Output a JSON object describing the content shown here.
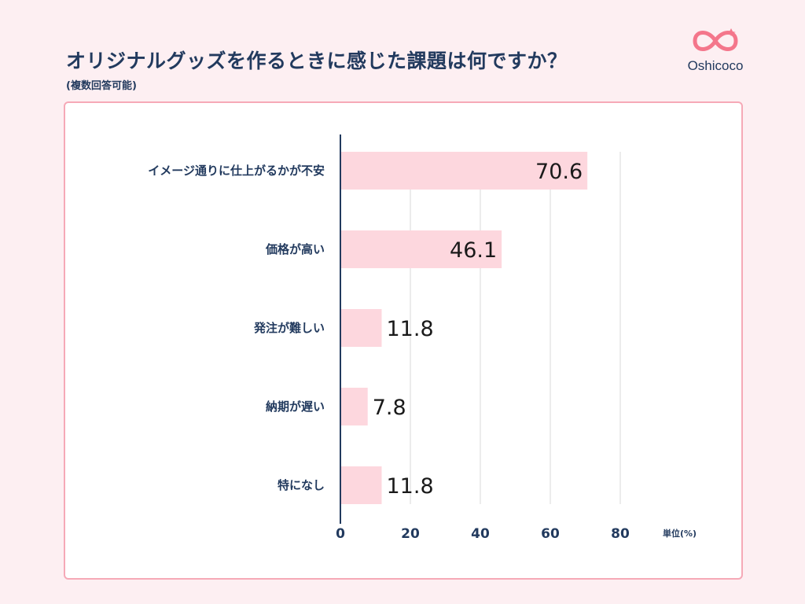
{
  "page": {
    "title": "オリジナルグッズを作るときに感じた課題は何ですか？",
    "subtitle": "(複数回答可能)",
    "brand": "Oshicoco"
  },
  "colors": {
    "bar": "#fdd7de",
    "axis": "#223a5e",
    "grid": "#d9d9d9",
    "border": "#f6a9b7"
  },
  "chart_data": {
    "type": "bar",
    "orientation": "horizontal",
    "title": "オリジナルグッズを作るときに感じた課題は何ですか？",
    "subtitle": "(複数回答可能)",
    "categories": [
      "イメージ通りに仕上がるかが不安",
      "価格が高い",
      "発注が難しい",
      "納期が遅い",
      "特になし"
    ],
    "values": [
      70.6,
      46.1,
      11.8,
      7.8,
      11.8
    ],
    "value_labels": [
      "70.6",
      "46.1",
      "11.8",
      "7.8",
      "11.8"
    ],
    "xlim": [
      0,
      80
    ],
    "xticks": [
      0,
      20,
      40,
      60,
      80
    ],
    "xtick_labels": [
      "0",
      "20",
      "40",
      "60",
      "80"
    ],
    "unit_label": "単位(%)",
    "grid": true
  }
}
